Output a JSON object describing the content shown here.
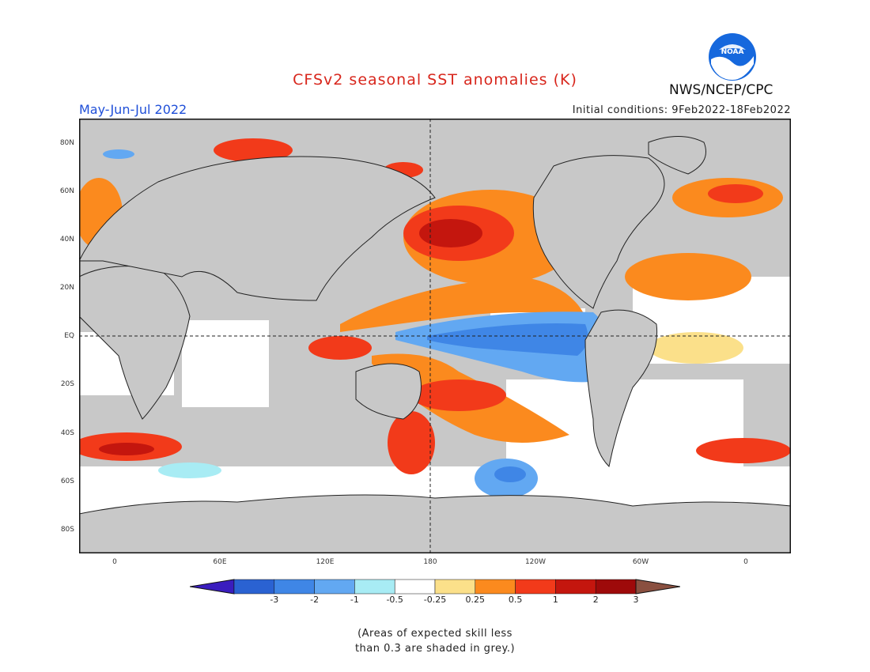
{
  "header": {
    "title": "CFSv2 seasonal SST anomalies (K)",
    "period": "May-Jun-Jul 2022",
    "initial_conditions": "Initial conditions: 9Feb2022-18Feb2022",
    "agency": "NWS/NCEP/CPC",
    "logo_text": "NOAA"
  },
  "map": {
    "lat_ticks": [
      "80N",
      "60N",
      "40N",
      "20N",
      "EQ",
      "20S",
      "40S",
      "60S",
      "80S"
    ],
    "lon_ticks": [
      "0",
      "60E",
      "120E",
      "180",
      "120W",
      "60W",
      "0"
    ]
  },
  "colorbar": {
    "labels": [
      "-3",
      "-2",
      "-1",
      "-0.5",
      "-0.25",
      "0.25",
      "0.5",
      "1",
      "2",
      "3"
    ],
    "colors": [
      "#3a1dbe",
      "#2a62d2",
      "#3f86e6",
      "#62a8f2",
      "#a8ecf4",
      "#ffffff",
      "#fbe08a",
      "#fb8a1e",
      "#f23a1a",
      "#c4160e",
      "#9e0a0a",
      "#8a5040"
    ]
  },
  "colors": {
    "grey_mask": "#c8c8c8",
    "title": "#d8261c",
    "period": "#1f4fd8",
    "noaa_blue": "#1668dd"
  },
  "note": {
    "line1": "(Areas of expected skill less",
    "line2": "than 0.3 are shaded in grey.)"
  }
}
